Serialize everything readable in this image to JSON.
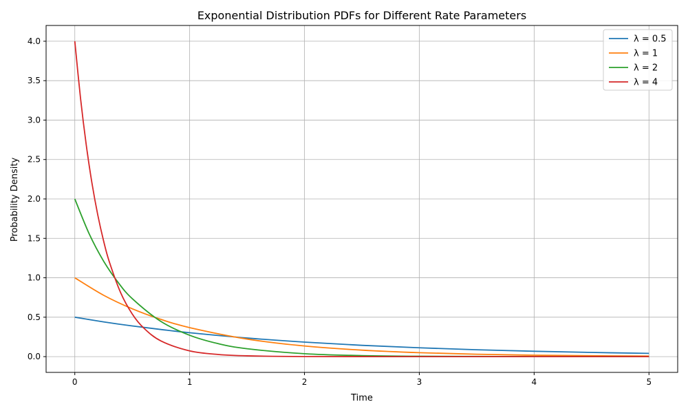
{
  "chart_data": {
    "type": "line",
    "title": "Exponential Distribution PDFs for Different Rate Parameters",
    "xlabel": "Time",
    "ylabel": "Probability Density",
    "xlim": [
      -0.25,
      5.25
    ],
    "ylim": [
      -0.2,
      4.2
    ],
    "xticks": [
      0,
      1,
      2,
      3,
      4,
      5
    ],
    "yticks": [
      0.0,
      0.5,
      1.0,
      1.5,
      2.0,
      2.5,
      3.0,
      3.5,
      4.0
    ],
    "xtick_labels": [
      "0",
      "1",
      "2",
      "3",
      "4",
      "5"
    ],
    "ytick_labels": [
      "0.0",
      "0.5",
      "1.0",
      "1.5",
      "2.0",
      "2.5",
      "3.0",
      "3.5",
      "4.0"
    ],
    "grid": true,
    "legend_position": "top-right",
    "series": [
      {
        "name": "λ = 0.5",
        "color": "#1f77b4",
        "x": [
          0,
          0.25,
          0.5,
          0.75,
          1.0,
          1.5,
          2.0,
          2.5,
          3.0,
          3.5,
          4.0,
          4.5,
          5.0
        ],
        "y": [
          0.5,
          0.441,
          0.389,
          0.344,
          0.303,
          0.236,
          0.184,
          0.143,
          0.112,
          0.087,
          0.068,
          0.053,
          0.041
        ]
      },
      {
        "name": "λ = 1",
        "color": "#ff7f0e",
        "x": [
          0,
          0.25,
          0.5,
          0.75,
          1.0,
          1.5,
          2.0,
          2.5,
          3.0,
          3.5,
          4.0,
          4.5,
          5.0
        ],
        "y": [
          1.0,
          0.779,
          0.607,
          0.472,
          0.368,
          0.223,
          0.135,
          0.082,
          0.05,
          0.03,
          0.018,
          0.011,
          0.007
        ]
      },
      {
        "name": "λ = 2",
        "color": "#2ca02c",
        "x": [
          0,
          0.125,
          0.25,
          0.375,
          0.5,
          0.75,
          1.0,
          1.25,
          1.5,
          2.0,
          2.5,
          3.0,
          4.0,
          5.0
        ],
        "y": [
          2.0,
          1.558,
          1.213,
          0.945,
          0.736,
          0.446,
          0.271,
          0.164,
          0.1,
          0.037,
          0.013,
          0.005,
          0.001,
          0.0
        ]
      },
      {
        "name": "λ = 4",
        "color": "#d62728",
        "x": [
          0,
          0.05,
          0.1,
          0.15,
          0.2,
          0.25,
          0.3,
          0.4,
          0.5,
          0.6,
          0.75,
          1.0,
          1.25,
          1.5,
          2.0,
          3.0,
          4.0,
          5.0
        ],
        "y": [
          4.0,
          3.275,
          2.681,
          2.195,
          1.797,
          1.472,
          1.205,
          0.808,
          0.541,
          0.363,
          0.199,
          0.073,
          0.027,
          0.01,
          0.001,
          0.0,
          0.0,
          0.0
        ]
      }
    ]
  }
}
